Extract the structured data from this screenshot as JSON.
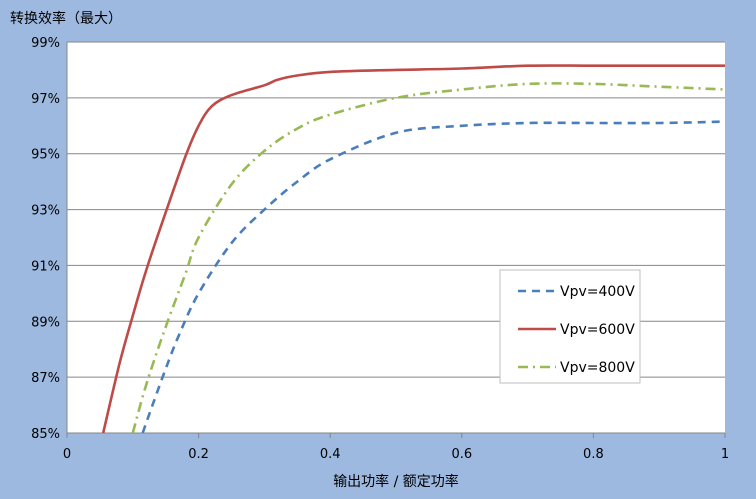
{
  "chart_data": {
    "type": "line",
    "title": "转换效率（最大）",
    "xlabel": "输出功率 / 额定功率",
    "ylabel": "",
    "xlim": [
      0,
      1
    ],
    "ylim": [
      85,
      99
    ],
    "xticks": [
      0,
      0.2,
      0.4,
      0.6,
      0.8,
      1
    ],
    "xtick_labels": [
      "0",
      "0.2",
      "0.4",
      "0.6",
      "0.8",
      "1"
    ],
    "yticks": [
      85,
      87,
      89,
      91,
      93,
      95,
      97,
      99
    ],
    "ytick_labels": [
      "85%",
      "87%",
      "89%",
      "91%",
      "93%",
      "95%",
      "97%",
      "99%"
    ],
    "grid": "horizontal",
    "legend_position": "right-center",
    "series": [
      {
        "name": "Vpv=400V",
        "color": "#4a7ebb",
        "dash": "dashed",
        "x": [
          0.115,
          0.13,
          0.15,
          0.17,
          0.2,
          0.25,
          0.3,
          0.35,
          0.4,
          0.5,
          0.6,
          0.7,
          0.8,
          0.9,
          1.0
        ],
        "y": [
          85.0,
          86.0,
          87.3,
          88.5,
          90.0,
          91.8,
          93.0,
          94.0,
          94.8,
          95.75,
          96.0,
          96.1,
          96.1,
          96.1,
          96.15
        ]
      },
      {
        "name": "Vpv=600V",
        "color": "#be4b48",
        "dash": "solid",
        "x": [
          0.055,
          0.08,
          0.1,
          0.12,
          0.15,
          0.18,
          0.2,
          0.22,
          0.25,
          0.3,
          0.32,
          0.35,
          0.4,
          0.5,
          0.6,
          0.7,
          0.8,
          0.9,
          1.0
        ],
        "y": [
          85.0,
          87.5,
          89.2,
          90.8,
          92.9,
          94.9,
          96.0,
          96.7,
          97.1,
          97.45,
          97.65,
          97.8,
          97.93,
          98.0,
          98.05,
          98.15,
          98.15,
          98.15,
          98.15
        ]
      },
      {
        "name": "Vpv=800V",
        "color": "#98b954",
        "dash": "dashdot",
        "x": [
          0.1,
          0.12,
          0.15,
          0.18,
          0.2,
          0.25,
          0.3,
          0.35,
          0.4,
          0.5,
          0.6,
          0.7,
          0.8,
          0.9,
          1.0
        ],
        "y": [
          85.0,
          86.7,
          88.8,
          90.7,
          92.0,
          93.9,
          95.1,
          95.9,
          96.4,
          97.0,
          97.3,
          97.5,
          97.5,
          97.4,
          97.3
        ]
      }
    ]
  }
}
